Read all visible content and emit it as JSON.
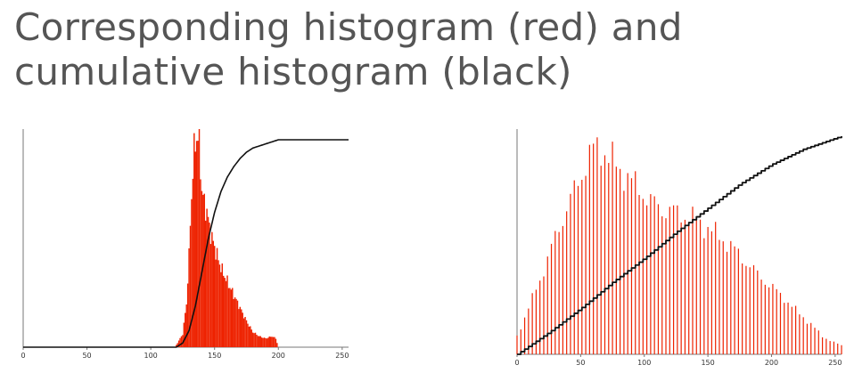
{
  "title": {
    "line1": "Corresponding histogram (red) and",
    "line2": "cumulative histogram (black)"
  },
  "colors": {
    "histogram": "#ee2200",
    "cumulative": "#111111",
    "axis": "#777777",
    "title": "#555555"
  },
  "chart_data": [
    {
      "type": "bar",
      "title": "",
      "xlabel": "",
      "ylabel": "",
      "xlim": [
        0,
        255
      ],
      "xticks": [
        0,
        50,
        100,
        150,
        200,
        250
      ],
      "grid": false,
      "series": [
        {
          "kind": "histogram",
          "points": [
            [
              120,
              0.01
            ],
            [
              125,
              0.06
            ],
            [
              128,
              0.2
            ],
            [
              130,
              0.42
            ],
            [
              132,
              0.7
            ],
            [
              134,
              0.9
            ],
            [
              136,
              0.97
            ],
            [
              138,
              0.94
            ],
            [
              140,
              0.72
            ],
            [
              142,
              0.66
            ],
            [
              144,
              0.62
            ],
            [
              146,
              0.55
            ],
            [
              148,
              0.5
            ],
            [
              150,
              0.46
            ],
            [
              153,
              0.4
            ],
            [
              156,
              0.35
            ],
            [
              160,
              0.3
            ],
            [
              165,
              0.24
            ],
            [
              170,
              0.18
            ],
            [
              175,
              0.12
            ],
            [
              180,
              0.07
            ],
            [
              185,
              0.05
            ],
            [
              190,
              0.04
            ],
            [
              195,
              0.05
            ],
            [
              198,
              0.04
            ],
            [
              200,
              0.0
            ]
          ]
        },
        {
          "kind": "cumulative",
          "points": [
            [
              0,
              0
            ],
            [
              120,
              0
            ],
            [
              125,
              0.02
            ],
            [
              130,
              0.08
            ],
            [
              135,
              0.2
            ],
            [
              140,
              0.36
            ],
            [
              145,
              0.52
            ],
            [
              150,
              0.65
            ],
            [
              155,
              0.75
            ],
            [
              160,
              0.82
            ],
            [
              165,
              0.87
            ],
            [
              170,
              0.91
            ],
            [
              175,
              0.94
            ],
            [
              180,
              0.96
            ],
            [
              190,
              0.98
            ],
            [
              200,
              1.0
            ],
            [
              255,
              1.0
            ]
          ]
        }
      ]
    },
    {
      "type": "bar",
      "title": "",
      "xlabel": "",
      "ylabel": "",
      "xlim": [
        0,
        255
      ],
      "xticks": [
        0,
        50,
        100,
        150,
        200,
        250
      ],
      "grid": false,
      "series": [
        {
          "kind": "histogram",
          "points": [
            [
              0,
              0.08
            ],
            [
              10,
              0.22
            ],
            [
              20,
              0.36
            ],
            [
              30,
              0.52
            ],
            [
              40,
              0.66
            ],
            [
              50,
              0.79
            ],
            [
              55,
              0.86
            ],
            [
              60,
              0.91
            ],
            [
              65,
              0.92
            ],
            [
              70,
              0.89
            ],
            [
              75,
              0.86
            ],
            [
              80,
              0.82
            ],
            [
              85,
              0.8
            ],
            [
              90,
              0.77
            ],
            [
              95,
              0.74
            ],
            [
              100,
              0.71
            ],
            [
              105,
              0.68
            ],
            [
              110,
              0.66
            ],
            [
              115,
              0.64
            ],
            [
              120,
              0.64
            ],
            [
              125,
              0.63
            ],
            [
              130,
              0.62
            ],
            [
              140,
              0.6
            ],
            [
              150,
              0.56
            ],
            [
              160,
              0.52
            ],
            [
              170,
              0.47
            ],
            [
              180,
              0.41
            ],
            [
              190,
              0.35
            ],
            [
              200,
              0.3
            ],
            [
              210,
              0.25
            ],
            [
              220,
              0.19
            ],
            [
              230,
              0.14
            ],
            [
              240,
              0.08
            ],
            [
              250,
              0.05
            ],
            [
              255,
              0.04
            ]
          ]
        },
        {
          "kind": "cumulative",
          "points": [
            [
              0,
              0
            ],
            [
              25,
              0.1
            ],
            [
              50,
              0.21
            ],
            [
              75,
              0.33
            ],
            [
              100,
              0.44
            ],
            [
              125,
              0.56
            ],
            [
              150,
              0.67
            ],
            [
              175,
              0.78
            ],
            [
              200,
              0.87
            ],
            [
              225,
              0.94
            ],
            [
              255,
              1.0
            ]
          ]
        }
      ]
    }
  ]
}
